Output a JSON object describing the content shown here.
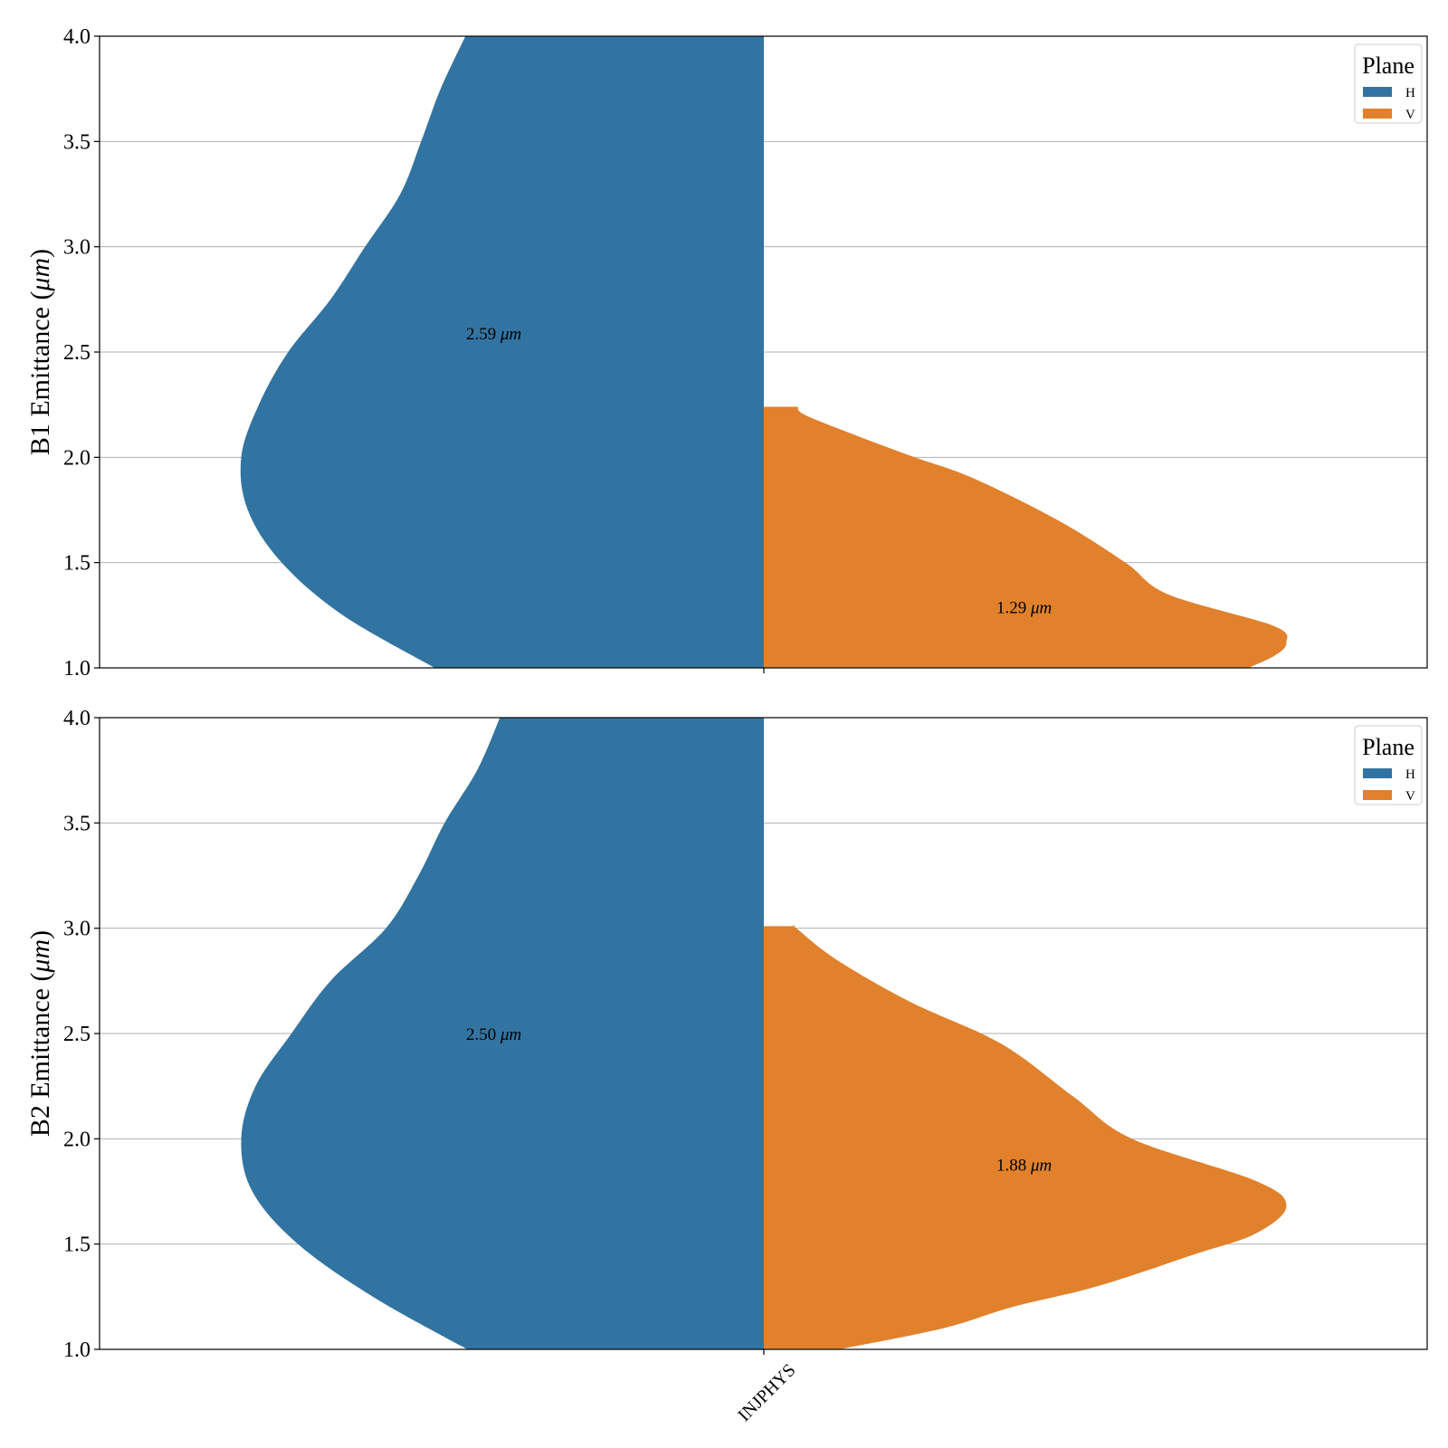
{
  "colors": {
    "H": "#3274a1",
    "V": "#e1812c",
    "grid": "#b0b0b0",
    "axis": "#000000"
  },
  "chart_data": [
    {
      "type": "violin",
      "split": true,
      "category": "INJPHYS",
      "ylabel_prefix": "B1 Emittance (",
      "ylabel_unit": "μm",
      "ylabel_suffix": ")",
      "ylim": [
        1.0,
        4.0
      ],
      "yticks": [
        "1.0",
        "1.5",
        "2.0",
        "2.5",
        "3.0",
        "3.5",
        "4.0"
      ],
      "grid": "horizontal",
      "legend": {
        "title": "Plane",
        "placement": "top-right",
        "entries": [
          "H",
          "V"
        ]
      },
      "series": [
        {
          "name": "H",
          "color": "#3274a1",
          "median_label": "2.59",
          "median_unit": "μm",
          "label_y": 2.59,
          "profile": [
            [
              1.0,
              0.505
            ],
            [
              1.25,
              0.646
            ],
            [
              1.5,
              0.74
            ],
            [
              1.75,
              0.792
            ],
            [
              2.0,
              0.802
            ],
            [
              2.25,
              0.775
            ],
            [
              2.5,
              0.73
            ],
            [
              2.75,
              0.665
            ],
            [
              3.0,
              0.612
            ],
            [
              3.25,
              0.558
            ],
            [
              3.5,
              0.526
            ],
            [
              3.75,
              0.496
            ],
            [
              4.0,
              0.458
            ]
          ]
        },
        {
          "name": "V",
          "color": "#e1812c",
          "median_label": "1.29",
          "median_unit": "μm",
          "label_y": 1.29,
          "profile": [
            [
              1.0,
              0.744
            ],
            [
              1.06,
              0.785
            ],
            [
              1.12,
              0.802
            ],
            [
              1.2,
              0.782
            ],
            [
              1.35,
              0.62
            ],
            [
              1.5,
              0.555
            ],
            [
              1.7,
              0.452
            ],
            [
              1.9,
              0.322
            ],
            [
              2.0,
              0.232
            ],
            [
              2.1,
              0.145
            ],
            [
              2.2,
              0.064
            ],
            [
              2.24,
              0.052
            ]
          ]
        }
      ]
    },
    {
      "type": "violin",
      "split": true,
      "category": "INJPHYS",
      "ylabel_prefix": "B2 Emittance (",
      "ylabel_unit": "μm",
      "ylabel_suffix": ")",
      "ylim": [
        1.0,
        4.0
      ],
      "yticks": [
        "1.0",
        "1.5",
        "2.0",
        "2.5",
        "3.0",
        "3.5",
        "4.0"
      ],
      "grid": "horizontal",
      "legend": {
        "title": "Plane",
        "placement": "top-right",
        "entries": [
          "H",
          "V"
        ]
      },
      "series": [
        {
          "name": "H",
          "color": "#3274a1",
          "median_label": "2.50",
          "median_unit": "μm",
          "label_y": 2.5,
          "profile": [
            [
              1.0,
              0.455
            ],
            [
              1.25,
              0.6
            ],
            [
              1.5,
              0.715
            ],
            [
              1.75,
              0.785
            ],
            [
              2.0,
              0.802
            ],
            [
              2.25,
              0.78
            ],
            [
              2.5,
              0.725
            ],
            [
              2.75,
              0.665
            ],
            [
              3.0,
              0.58
            ],
            [
              3.25,
              0.53
            ],
            [
              3.5,
              0.49
            ],
            [
              3.75,
              0.44
            ],
            [
              4.0,
              0.405
            ]
          ]
        },
        {
          "name": "V",
          "color": "#e1812c",
          "median_label": "1.88",
          "median_unit": "μm",
          "label_y": 1.88,
          "profile": [
            [
              1.0,
              0.115
            ],
            [
              1.1,
              0.275
            ],
            [
              1.2,
              0.38
            ],
            [
              1.3,
              0.512
            ],
            [
              1.45,
              0.66
            ],
            [
              1.55,
              0.755
            ],
            [
              1.68,
              0.802
            ],
            [
              1.8,
              0.755
            ],
            [
              2.0,
              0.565
            ],
            [
              2.2,
              0.475
            ],
            [
              2.45,
              0.365
            ],
            [
              2.65,
              0.225
            ],
            [
              2.85,
              0.112
            ],
            [
              3.0,
              0.05
            ],
            [
              3.01,
              0.049
            ]
          ]
        }
      ]
    }
  ]
}
